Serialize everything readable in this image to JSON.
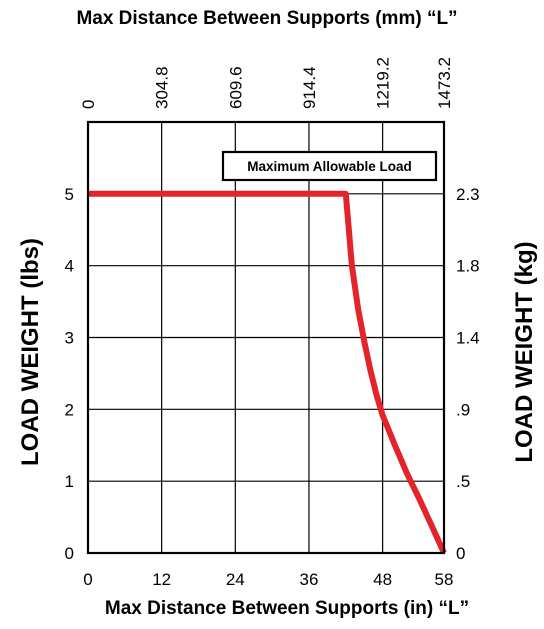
{
  "chart_data": {
    "type": "line",
    "title_top": "Max Distance Between Supports (mm) “L”",
    "xlabel": "Max Distance Between Supports (in)  “L”",
    "ylabel_left": "LOAD WEIGHT (lbs)",
    "ylabel_right": "LOAD WEIGHT (kg)",
    "legend_label": "Maximum Allowable Load",
    "x_ticks": [
      "0",
      "12",
      "24",
      "36",
      "48",
      "58"
    ],
    "x_top_ticks": [
      "0",
      "304.8",
      "609.6",
      "914.4",
      "1219.2",
      "1473.2"
    ],
    "y_ticks": [
      "0",
      "1",
      "2",
      "3",
      "4",
      "5"
    ],
    "y_right_ticks": [
      "0",
      ".5",
      ".9",
      "1.4",
      "1.8",
      "2.3"
    ],
    "xlim": [
      0,
      58
    ],
    "ylim": [
      0,
      6
    ],
    "grid": true,
    "series": [
      {
        "color": "#e3242b",
        "x": [
          0,
          42,
          43,
          44,
          45,
          46,
          47,
          48,
          50,
          52,
          54,
          56,
          58
        ],
        "y": [
          5,
          5,
          4.0,
          3.4,
          2.95,
          2.55,
          2.2,
          1.92,
          1.5,
          1.1,
          0.75,
          0.38,
          0
        ]
      }
    ]
  }
}
